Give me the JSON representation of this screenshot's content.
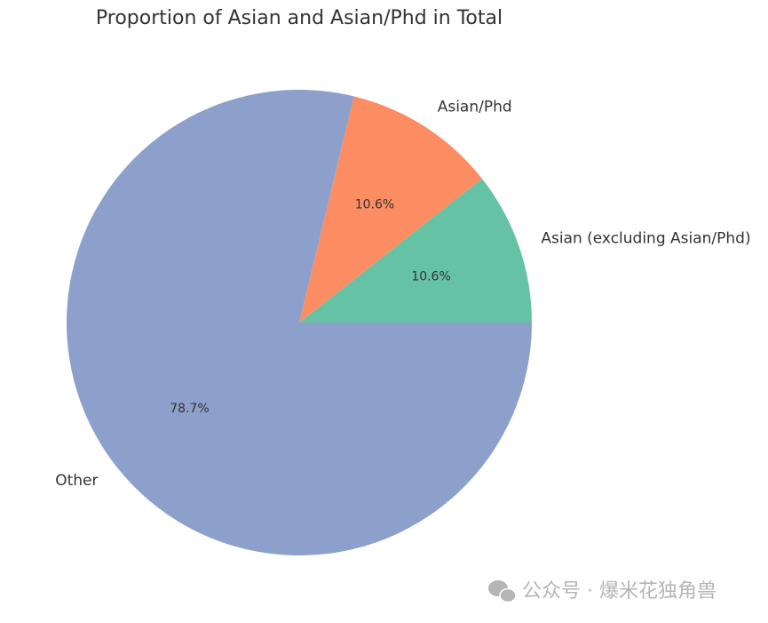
{
  "chart_data": {
    "type": "pie",
    "title": "Proportion of Asian and Asian/Phd in Total",
    "categories": [
      "Asian (excluding Asian/Phd)",
      "Asian/Phd",
      "Other"
    ],
    "values": [
      10.6,
      10.6,
      78.7
    ],
    "value_labels": [
      "10.6%",
      "10.6%",
      "78.7%"
    ],
    "colors": [
      "#66c2a5",
      "#fc8d62",
      "#8da0cb"
    ]
  },
  "watermark": "公众号 · 爆米花独角兽"
}
